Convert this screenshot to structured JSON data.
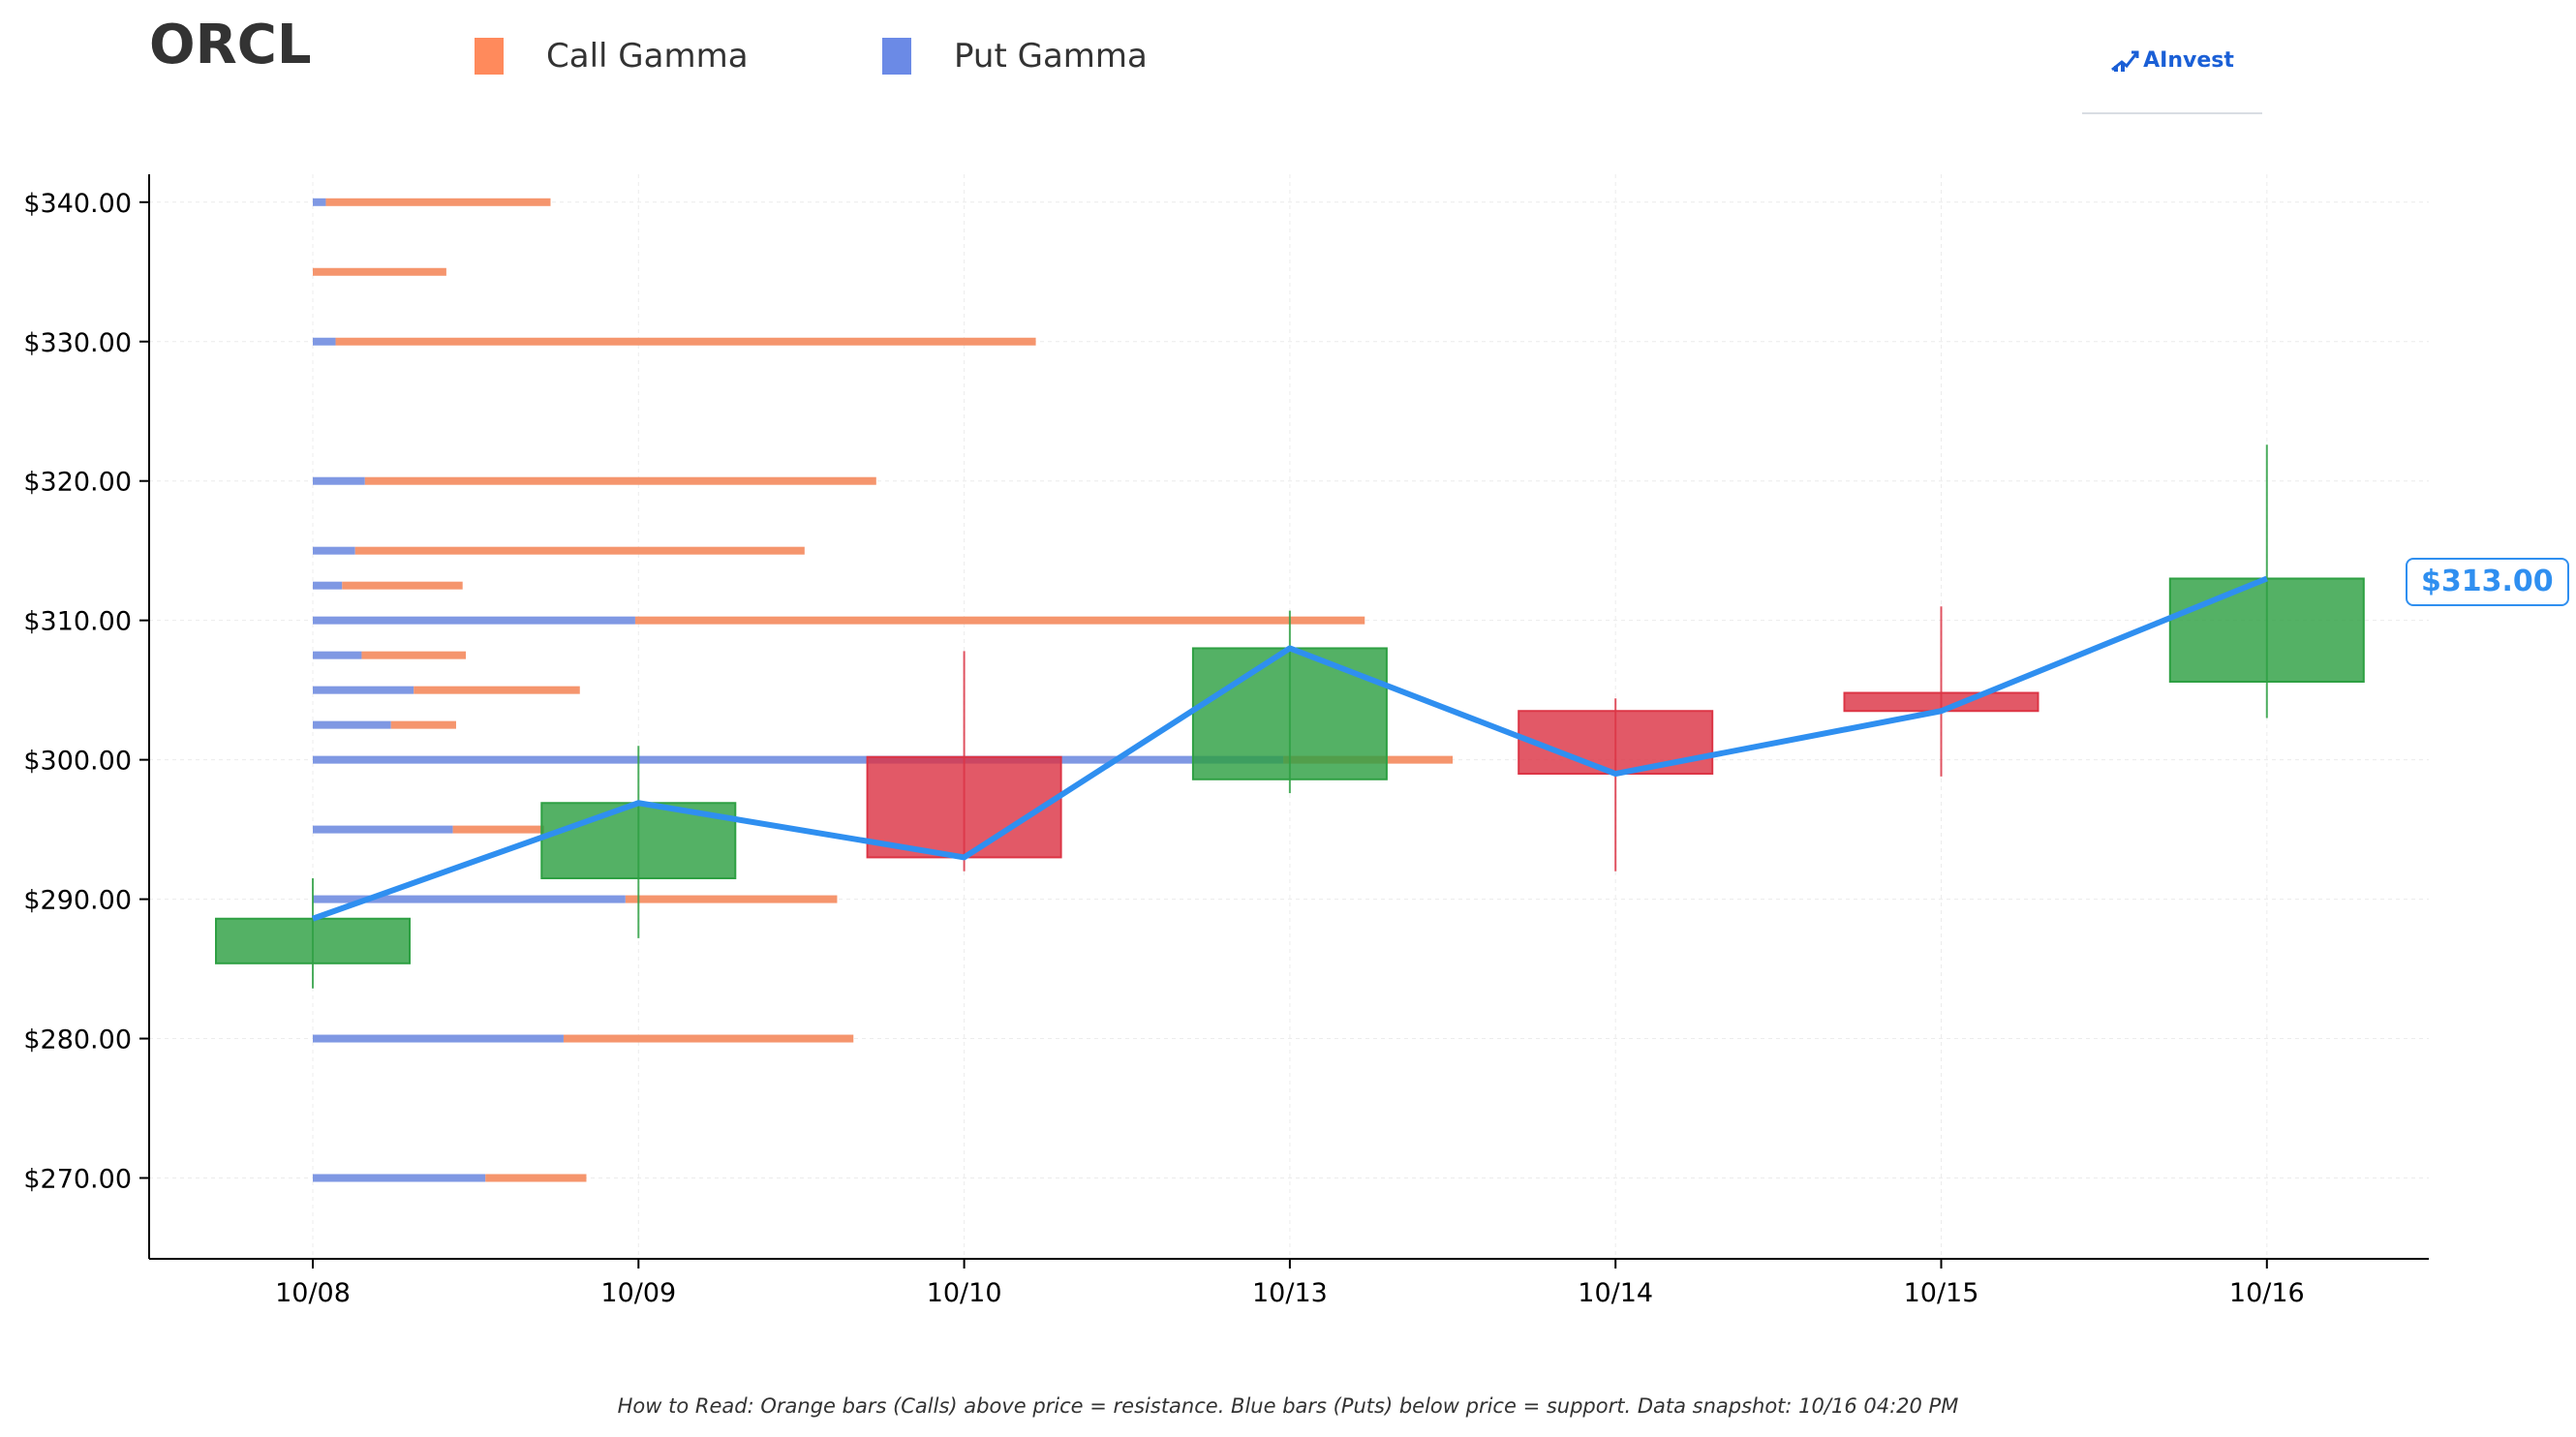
{
  "header": {
    "ticker": "ORCL",
    "legend": [
      {
        "label": "Call Gamma",
        "color": "#ff8a5c"
      },
      {
        "label": "Put Gamma",
        "color": "#6b8ae6"
      }
    ],
    "logo_text": "AInvest"
  },
  "price_badge": "$313.00",
  "footer_note": "How to Read: Orange bars (Calls) above price = resistance. Blue bars (Puts) below price = support. Data snapshot: 10/16 04:20 PM",
  "chart_data": {
    "type": "bar",
    "title": "ORCL",
    "xlabel": "",
    "ylabel": "",
    "categories": [
      "10/08",
      "10/09",
      "10/10",
      "10/13",
      "10/14",
      "10/15",
      "10/16"
    ],
    "ylim": [
      264.2,
      342.0
    ],
    "yticks": [
      270,
      280,
      290,
      300,
      310,
      320,
      330,
      340
    ],
    "ytick_labels": [
      "$270.00",
      "$280.00",
      "$290.00",
      "$300.00",
      "$310.00",
      "$320.00",
      "$330.00",
      "$340.00"
    ],
    "grid": true,
    "legend_position": "top",
    "colors": {
      "up": "#2ea043",
      "down": "#dc3545",
      "close_line": "#2f8ff0",
      "call": "#f5956d",
      "put": "#7f98e3"
    },
    "candles": [
      {
        "date": "10/08",
        "open": 285.4,
        "close": 288.6,
        "high": 291.5,
        "low": 283.6
      },
      {
        "date": "10/09",
        "open": 291.5,
        "close": 296.9,
        "high": 301.0,
        "low": 287.2
      },
      {
        "date": "10/10",
        "open": 300.2,
        "close": 293.0,
        "high": 307.8,
        "low": 292.0
      },
      {
        "date": "10/13",
        "open": 298.6,
        "close": 308.0,
        "high": 310.7,
        "low": 297.6
      },
      {
        "date": "10/14",
        "open": 303.5,
        "close": 299.0,
        "high": 304.4,
        "low": 292.0
      },
      {
        "date": "10/15",
        "open": 304.8,
        "close": 303.5,
        "high": 311.0,
        "low": 298.8
      },
      {
        "date": "10/16",
        "open": 305.6,
        "close": 313.0,
        "high": 322.6,
        "low": 303.0
      }
    ],
    "gamma_units": "category widths from 10/08",
    "gamma_levels": [
      {
        "strike": 340,
        "put": 0.04,
        "call": 0.69
      },
      {
        "strike": 335,
        "put": 0.0,
        "call": 0.41
      },
      {
        "strike": 330,
        "put": 0.07,
        "call": 2.15
      },
      {
        "strike": 320,
        "put": 0.16,
        "call": 1.57
      },
      {
        "strike": 315,
        "put": 0.13,
        "call": 1.38
      },
      {
        "strike": 312.5,
        "put": 0.09,
        "call": 0.37
      },
      {
        "strike": 310,
        "put": 0.99,
        "call": 2.24
      },
      {
        "strike": 307.5,
        "put": 0.15,
        "call": 0.32
      },
      {
        "strike": 305,
        "put": 0.31,
        "call": 0.51
      },
      {
        "strike": 302.5,
        "put": 0.24,
        "call": 0.2
      },
      {
        "strike": 300,
        "put": 2.98,
        "call": 0.52
      },
      {
        "strike": 295,
        "put": 0.43,
        "call": 0.28
      },
      {
        "strike": 290,
        "put": 0.96,
        "call": 0.65
      },
      {
        "strike": 280,
        "put": 0.77,
        "call": 0.89
      },
      {
        "strike": 270,
        "put": 0.53,
        "call": 0.31
      }
    ]
  }
}
